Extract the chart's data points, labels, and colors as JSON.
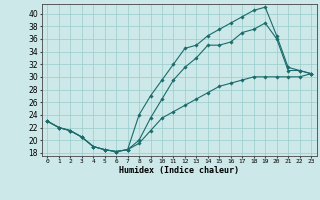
{
  "xlabel": "Humidex (Indice chaleur)",
  "bg_color": "#cce8e8",
  "grid_color": "#99cccc",
  "line_color": "#1a6b6b",
  "xlim": [
    -0.5,
    23.5
  ],
  "ylim": [
    17.5,
    41.5
  ],
  "xticks": [
    0,
    1,
    2,
    3,
    4,
    5,
    6,
    7,
    8,
    9,
    10,
    11,
    12,
    13,
    14,
    15,
    16,
    17,
    18,
    19,
    20,
    21,
    22,
    23
  ],
  "yticks": [
    18,
    20,
    22,
    24,
    26,
    28,
    30,
    32,
    34,
    36,
    38,
    40
  ],
  "line1_x": [
    0,
    1,
    2,
    3,
    4,
    5,
    6,
    7,
    8,
    9,
    10,
    11,
    12,
    13,
    14,
    15,
    16,
    17,
    18,
    19,
    20,
    21,
    22,
    23
  ],
  "line1_y": [
    23,
    22,
    21.5,
    20.5,
    19,
    18.5,
    18.2,
    18.5,
    24,
    27,
    29.5,
    32,
    34.5,
    35,
    36.5,
    37.5,
    38.5,
    39.5,
    40.5,
    41,
    36.5,
    31.5,
    31,
    30.5
  ],
  "line2_x": [
    0,
    1,
    2,
    3,
    4,
    5,
    6,
    7,
    8,
    9,
    10,
    11,
    12,
    13,
    14,
    15,
    16,
    17,
    18,
    19,
    20,
    21,
    22,
    23
  ],
  "line2_y": [
    23,
    22,
    21.5,
    20.5,
    19,
    18.5,
    18.2,
    18.5,
    20,
    23.5,
    26.5,
    29.5,
    31.5,
    33,
    35,
    35,
    35.5,
    37,
    37.5,
    38.5,
    36,
    31,
    31,
    30.5
  ],
  "line3_x": [
    0,
    1,
    2,
    3,
    4,
    5,
    6,
    7,
    8,
    9,
    10,
    11,
    12,
    13,
    14,
    15,
    16,
    17,
    18,
    19,
    20,
    21,
    22,
    23
  ],
  "line3_y": [
    23,
    22,
    21.5,
    20.5,
    19,
    18.5,
    18.2,
    18.5,
    19.5,
    21.5,
    23.5,
    24.5,
    25.5,
    26.5,
    27.5,
    28.5,
    29,
    29.5,
    30,
    30,
    30,
    30,
    30,
    30.5
  ]
}
